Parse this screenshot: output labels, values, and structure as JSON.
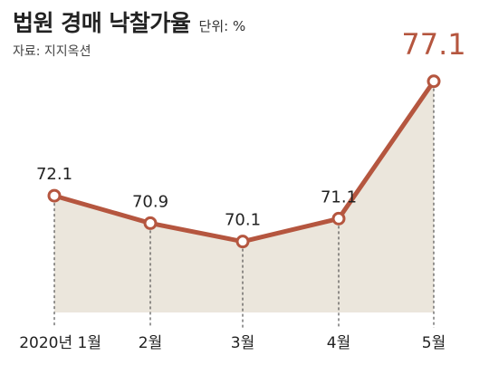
{
  "header": {
    "title": "법원 경매 낙찰가율",
    "unit": "단위: %",
    "source": "자료: 지지옥션"
  },
  "colors": {
    "line": "#b5563f",
    "marker_fill": "#ffffff",
    "area": "#ebe6dc",
    "highlight_label": "#b5563f",
    "text": "#222222"
  },
  "chart_data": {
    "type": "line",
    "title": "법원 경매 낙찰가율",
    "unit": "%",
    "categories": [
      "2020년 1월",
      "2월",
      "3월",
      "4월",
      "5월"
    ],
    "values": [
      72.1,
      70.9,
      70.1,
      71.1,
      77.1
    ],
    "value_labels": [
      "72.1",
      "70.9",
      "70.1",
      "71.1",
      "77.1"
    ],
    "highlight_index": 4,
    "ylim": [
      67,
      78
    ],
    "area_fill": true,
    "grid": false
  }
}
